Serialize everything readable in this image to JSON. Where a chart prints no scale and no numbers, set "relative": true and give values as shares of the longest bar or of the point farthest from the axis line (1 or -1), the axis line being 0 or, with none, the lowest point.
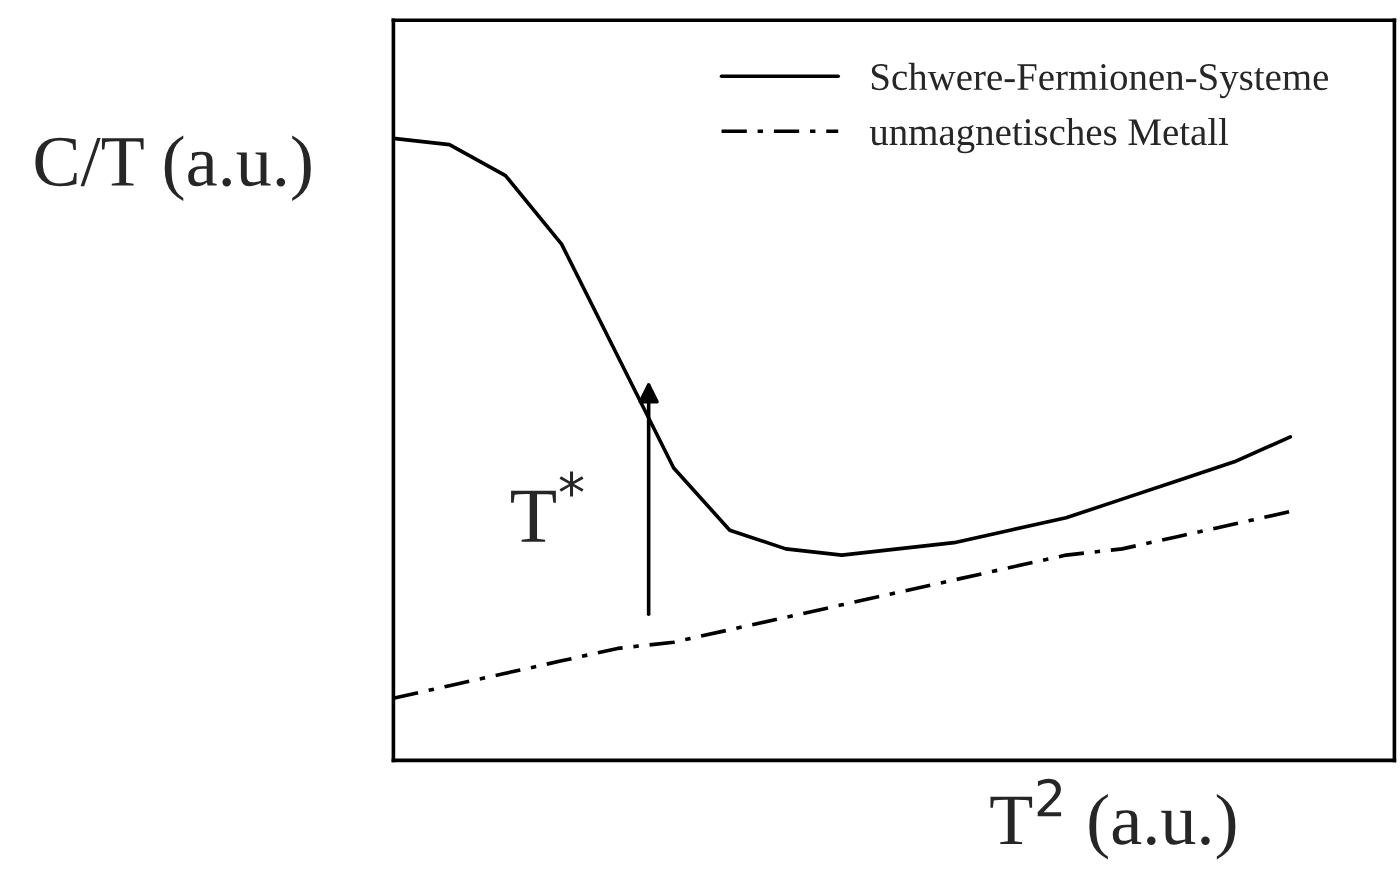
{
  "chart_data": {
    "type": "line",
    "relative": true,
    "xlabel": "T$^{2}$ (a.u.)",
    "ylabel": "C/T (a.u.)",
    "categories": [
      null,
      null,
      null,
      null,
      null,
      null,
      null,
      null,
      null,
      null,
      null,
      null,
      null,
      null,
      null,
      null,
      null
    ],
    "series": [
      {
        "name": "Schwere-Fermionen-Systeme",
        "color": "#000000",
        "line_style": "solid",
        "values": [
          1.0,
          0.99,
          0.94,
          0.83,
          0.65,
          0.47,
          0.37,
          0.34,
          0.33,
          0.34,
          0.35,
          0.37,
          0.39,
          0.42,
          0.45,
          0.48,
          0.52
        ]
      },
      {
        "name": "unmagnetisches Metall",
        "color": "#000000",
        "line_style": "dashdot",
        "values": [
          0.1,
          0.12,
          0.14,
          0.16,
          0.18,
          0.19,
          0.21,
          0.23,
          0.25,
          0.27,
          0.29,
          0.31,
          0.33,
          0.34,
          0.36,
          0.38,
          0.4
        ]
      }
    ],
    "annotations": [
      "T$^{*}$"
    ],
    "legend": "top right",
    "grid": false,
    "marker": "none"
  }
}
